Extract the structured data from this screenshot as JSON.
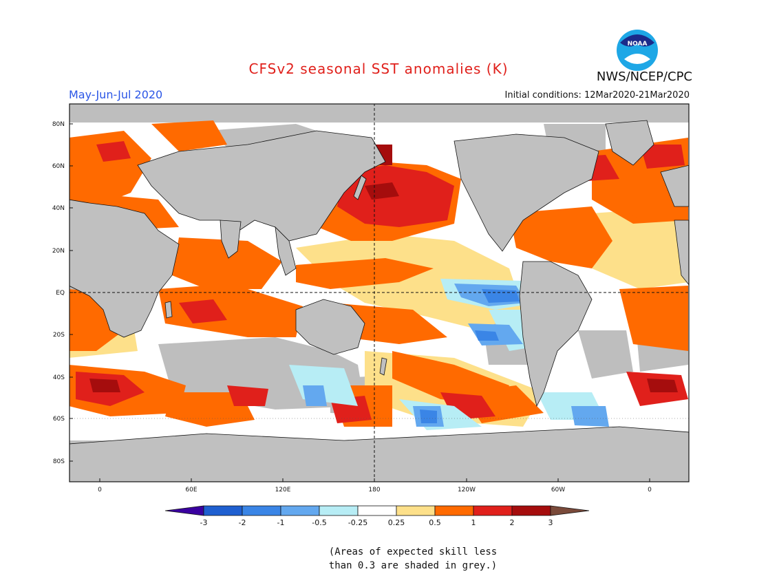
{
  "header": {
    "title": "CFSv2 seasonal SST anomalies (K)",
    "season": "May-Jun-Jul 2020",
    "initial_conditions": "Initial conditions: 12Mar2020-21Mar2020",
    "agency": "NWS/NCEP/CPC",
    "logo_text": "NOAA"
  },
  "map": {
    "lat_labels": [
      "80N",
      "60N",
      "40N",
      "20N",
      "EQ",
      "20S",
      "40S",
      "60S",
      "80S"
    ],
    "lon_labels": [
      "0",
      "60E",
      "120E",
      "180",
      "120W",
      "60W",
      "0"
    ],
    "colors": {
      "land": "#c0c0c0",
      "skill_grey": "#bebebe",
      "ocean_neutral": "#ffffff"
    }
  },
  "colorbar": {
    "levels": [
      "-3",
      "-2",
      "-1",
      "-0.5",
      "-0.25",
      "0.25",
      "0.5",
      "1",
      "2",
      "3"
    ],
    "colors": [
      "#3a00a0",
      "#1f5fd0",
      "#3a85e6",
      "#63a8ef",
      "#b7edf5",
      "#ffffff",
      "#fde08a",
      "#ff6a00",
      "#e0201b",
      "#a50d0d",
      "#7a4a3a"
    ]
  },
  "note": {
    "line1": "(Areas of expected skill less",
    "line2": "than 0.3 are shaded in grey.)"
  }
}
